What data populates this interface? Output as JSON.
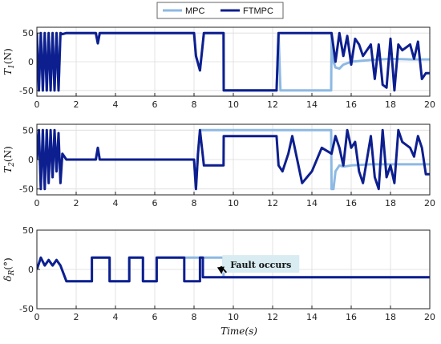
{
  "chart_data": [
    {
      "type": "line",
      "ylabel": "T_1(N)",
      "ylim": [
        -60,
        60
      ],
      "yticks": [
        -50,
        0,
        50
      ],
      "xlim": [
        0,
        20
      ],
      "xticks": [
        0,
        2,
        4,
        6,
        8,
        10,
        12,
        14,
        16,
        18,
        20
      ],
      "grid": true,
      "series": [
        {
          "name": "MPC",
          "color": "#8db9e3",
          "x": [
            0,
            0.1,
            0.2,
            0.3,
            0.4,
            0.5,
            0.6,
            0.7,
            0.8,
            0.9,
            1.0,
            1.1,
            1.2,
            1.3,
            1.5,
            3.0,
            3.1,
            3.2,
            8.0,
            8.1,
            8.3,
            8.5,
            9.5,
            9.51,
            12.2,
            12.3,
            12.4,
            14.98,
            15.0,
            15.1,
            15.2,
            15.4,
            15.6,
            16.0,
            17.0,
            18.0,
            19.0,
            20.0
          ],
          "y": [
            50,
            -50,
            50,
            -50,
            50,
            -50,
            50,
            -50,
            50,
            -50,
            50,
            -50,
            50,
            48,
            50,
            50,
            32,
            50,
            50,
            10,
            -15,
            50,
            50,
            -50,
            -50,
            50,
            -50,
            -50,
            50,
            0,
            -10,
            -12,
            -5,
            0,
            3,
            5,
            4,
            4
          ]
        },
        {
          "name": "FTMPC",
          "color": "#0d1f8f",
          "x": [
            0,
            0.1,
            0.2,
            0.3,
            0.4,
            0.5,
            0.6,
            0.7,
            0.8,
            0.9,
            1.0,
            1.1,
            1.2,
            1.3,
            1.5,
            3.0,
            3.1,
            3.2,
            8.0,
            8.1,
            8.3,
            8.5,
            9.5,
            9.51,
            12.2,
            12.3,
            12.4,
            15.0,
            15.2,
            15.4,
            15.6,
            15.8,
            16.0,
            16.2,
            16.4,
            16.6,
            17.0,
            17.2,
            17.4,
            17.6,
            17.8,
            18.0,
            18.2,
            18.4,
            18.6,
            19.0,
            19.2,
            19.4,
            19.6,
            19.8,
            20.0
          ],
          "y": [
            50,
            -50,
            50,
            -50,
            50,
            -50,
            50,
            -50,
            50,
            -50,
            50,
            -50,
            50,
            48,
            50,
            50,
            32,
            50,
            50,
            10,
            -15,
            50,
            50,
            -50,
            -50,
            50,
            50,
            50,
            0,
            50,
            10,
            45,
            -5,
            40,
            30,
            10,
            30,
            -30,
            30,
            -40,
            -45,
            40,
            -50,
            30,
            20,
            30,
            5,
            35,
            -30,
            -20,
            -20
          ]
        }
      ]
    },
    {
      "type": "line",
      "ylabel": "T_2(N)",
      "ylim": [
        -60,
        60
      ],
      "yticks": [
        -50,
        0,
        50
      ],
      "xlim": [
        0,
        20
      ],
      "xticks": [
        0,
        2,
        4,
        6,
        8,
        10,
        12,
        14,
        16,
        18,
        20
      ],
      "grid": true,
      "series": [
        {
          "name": "MPC",
          "color": "#8db9e3",
          "x": [
            0,
            0.1,
            0.2,
            0.3,
            0.4,
            0.5,
            0.6,
            0.7,
            0.8,
            0.9,
            1.0,
            1.1,
            1.2,
            1.3,
            1.5,
            3.0,
            3.1,
            3.2,
            8.0,
            8.1,
            8.2,
            8.3,
            9.5,
            9.51,
            12.2,
            12.3,
            14.98,
            15.0,
            15.1,
            15.2,
            15.4,
            15.6,
            16.0,
            17.0,
            18.0,
            19.0,
            20.0
          ],
          "y": [
            0,
            45,
            -45,
            50,
            -40,
            45,
            -30,
            40,
            -30,
            40,
            -20,
            30,
            -30,
            10,
            0,
            0,
            20,
            0,
            0,
            -50,
            10,
            50,
            50,
            50,
            50,
            50,
            50,
            -50,
            -50,
            -20,
            -10,
            -12,
            -10,
            -8,
            -8,
            -8,
            -8
          ]
        },
        {
          "name": "FTMPC",
          "color": "#0d1f8f",
          "x": [
            0,
            0.1,
            0.2,
            0.3,
            0.4,
            0.5,
            0.6,
            0.7,
            0.8,
            0.9,
            1.0,
            1.1,
            1.2,
            1.3,
            1.5,
            3.0,
            3.1,
            3.2,
            8.0,
            8.1,
            8.2,
            8.3,
            8.5,
            9.5,
            9.51,
            12.2,
            12.3,
            12.5,
            12.8,
            13.0,
            13.5,
            14.0,
            14.5,
            15.0,
            15.2,
            15.4,
            15.6,
            15.8,
            16.0,
            16.2,
            16.4,
            16.6,
            17.0,
            17.2,
            17.4,
            17.6,
            17.8,
            18.0,
            18.2,
            18.4,
            18.6,
            19.0,
            19.2,
            19.4,
            19.6,
            19.8,
            20.0
          ],
          "y": [
            0,
            50,
            -50,
            50,
            -50,
            50,
            -40,
            50,
            -30,
            50,
            -20,
            45,
            -40,
            10,
            0,
            0,
            20,
            0,
            0,
            -50,
            10,
            50,
            -10,
            -10,
            40,
            40,
            -10,
            -20,
            10,
            40,
            -40,
            -20,
            20,
            10,
            40,
            20,
            -10,
            50,
            20,
            30,
            -20,
            -40,
            40,
            -30,
            -50,
            50,
            -30,
            -10,
            -40,
            50,
            30,
            20,
            5,
            40,
            20,
            -25,
            -25
          ]
        }
      ]
    },
    {
      "type": "line",
      "ylabel": "δ_R(°)",
      "ylim": [
        -50,
        50
      ],
      "yticks": [
        -50,
        0,
        50
      ],
      "xlim": [
        0,
        20
      ],
      "xticks": [
        0,
        2,
        4,
        6,
        8,
        10,
        12,
        14,
        16,
        18,
        20
      ],
      "xlabel": "Time(s)",
      "grid": true,
      "annotations": [
        {
          "text": "Fault occurs",
          "x": 11.4,
          "y": 6
        }
      ],
      "series": [
        {
          "name": "MPC",
          "color": "#8db9e3",
          "x": [
            0,
            0.2,
            0.4,
            0.6,
            0.8,
            1.0,
            1.2,
            1.5,
            2.8,
            2.8,
            3.7,
            3.7,
            4.7,
            4.7,
            5.4,
            5.4,
            6.1,
            6.1,
            7.5,
            7.5,
            8.6,
            8.6,
            9.5,
            9.5,
            20
          ],
          "y": [
            0,
            15,
            5,
            12,
            5,
            12,
            5,
            -15,
            -15,
            15,
            15,
            -15,
            -15,
            15,
            15,
            -15,
            -15,
            15,
            15,
            15,
            15,
            15,
            15,
            -10,
            -10
          ]
        },
        {
          "name": "FTMPC",
          "color": "#0d1f8f",
          "x": [
            0,
            0.2,
            0.4,
            0.6,
            0.8,
            1.0,
            1.2,
            1.5,
            2.8,
            2.8,
            3.7,
            3.7,
            4.7,
            4.7,
            5.4,
            5.4,
            6.1,
            6.1,
            7.5,
            7.5,
            8.3,
            8.3,
            8.45,
            8.45,
            8.55,
            8.55,
            20
          ],
          "y": [
            0,
            15,
            5,
            12,
            5,
            12,
            5,
            -15,
            -15,
            15,
            15,
            -15,
            -15,
            15,
            15,
            -15,
            -15,
            15,
            15,
            -15,
            -15,
            15,
            15,
            -10,
            -10,
            -10,
            -10
          ]
        }
      ]
    }
  ],
  "legend": {
    "placement": "top-center",
    "entries": [
      "MPC",
      "FTMPC"
    ]
  }
}
